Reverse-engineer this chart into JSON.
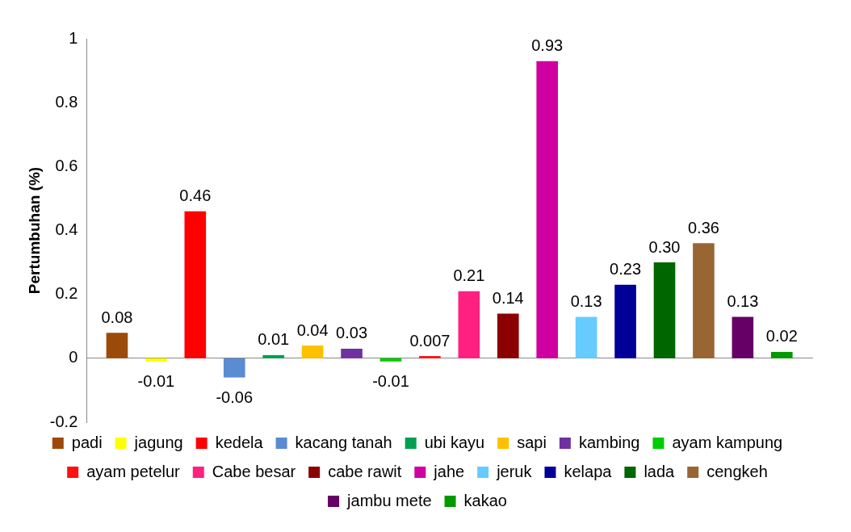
{
  "chart_data": {
    "type": "bar",
    "ylabel": "Pertumbuhan (%)",
    "categories": [
      null
    ],
    "ylim": [
      -0.2,
      1
    ],
    "yticks": [
      -0.2,
      0,
      0.2,
      0.4,
      0.6,
      0.8,
      1
    ],
    "legend": "bottom",
    "series": [
      {
        "name": "padi",
        "color": "#9c4a0a",
        "values": [
          0.08
        ],
        "value_labels": [
          "0.08"
        ]
      },
      {
        "name": "jagung",
        "color": "#ffff00",
        "values": [
          -0.01
        ],
        "value_labels": [
          "-0.01"
        ]
      },
      {
        "name": "kedela",
        "color": "#ff0000",
        "values": [
          0.46
        ],
        "value_labels": [
          "0.46"
        ]
      },
      {
        "name": "kacang tanah",
        "color": "#5b8bd0",
        "values": [
          -0.06
        ],
        "value_labels": [
          "-0.06"
        ]
      },
      {
        "name": "ubi kayu",
        "color": "#00a050",
        "values": [
          0.01
        ],
        "value_labels": [
          "0.01"
        ]
      },
      {
        "name": "sapi",
        "color": "#ffc000",
        "values": [
          0.04
        ],
        "value_labels": [
          "0.04"
        ]
      },
      {
        "name": "kambing",
        "color": "#7030a0",
        "values": [
          0.03
        ],
        "value_labels": [
          "0.03"
        ]
      },
      {
        "name": "ayam kampung",
        "color": "#00cc00",
        "values": [
          -0.01
        ],
        "value_labels": [
          "-0.01"
        ]
      },
      {
        "name": "ayam petelur",
        "color": "#ff1010",
        "values": [
          0.007
        ],
        "value_labels": [
          "0.007"
        ]
      },
      {
        "name": "Cabe besar",
        "color": "#ff2080",
        "values": [
          0.21
        ],
        "value_labels": [
          "0.21"
        ]
      },
      {
        "name": "cabe rawit",
        "color": "#8b0000",
        "values": [
          0.14
        ],
        "value_labels": [
          "0.14"
        ]
      },
      {
        "name": "jahe",
        "color": "#d000a0",
        "values": [
          0.93
        ],
        "value_labels": [
          "0.93"
        ]
      },
      {
        "name": "jeruk",
        "color": "#66ccff",
        "values": [
          0.13
        ],
        "value_labels": [
          "0.13"
        ]
      },
      {
        "name": "kelapa",
        "color": "#000099",
        "values": [
          0.23
        ],
        "value_labels": [
          "0.23"
        ]
      },
      {
        "name": "lada",
        "color": "#006600",
        "values": [
          0.3
        ],
        "value_labels": [
          "0.30"
        ]
      },
      {
        "name": "cengkeh",
        "color": "#996633",
        "values": [
          0.36
        ],
        "value_labels": [
          "0.36"
        ]
      },
      {
        "name": "jambu mete",
        "color": "#660066",
        "values": [
          0.13
        ],
        "value_labels": [
          "0.13"
        ]
      },
      {
        "name": "kakao",
        "color": "#009900",
        "values": [
          0.02
        ],
        "value_labels": [
          "0.02"
        ]
      }
    ]
  }
}
